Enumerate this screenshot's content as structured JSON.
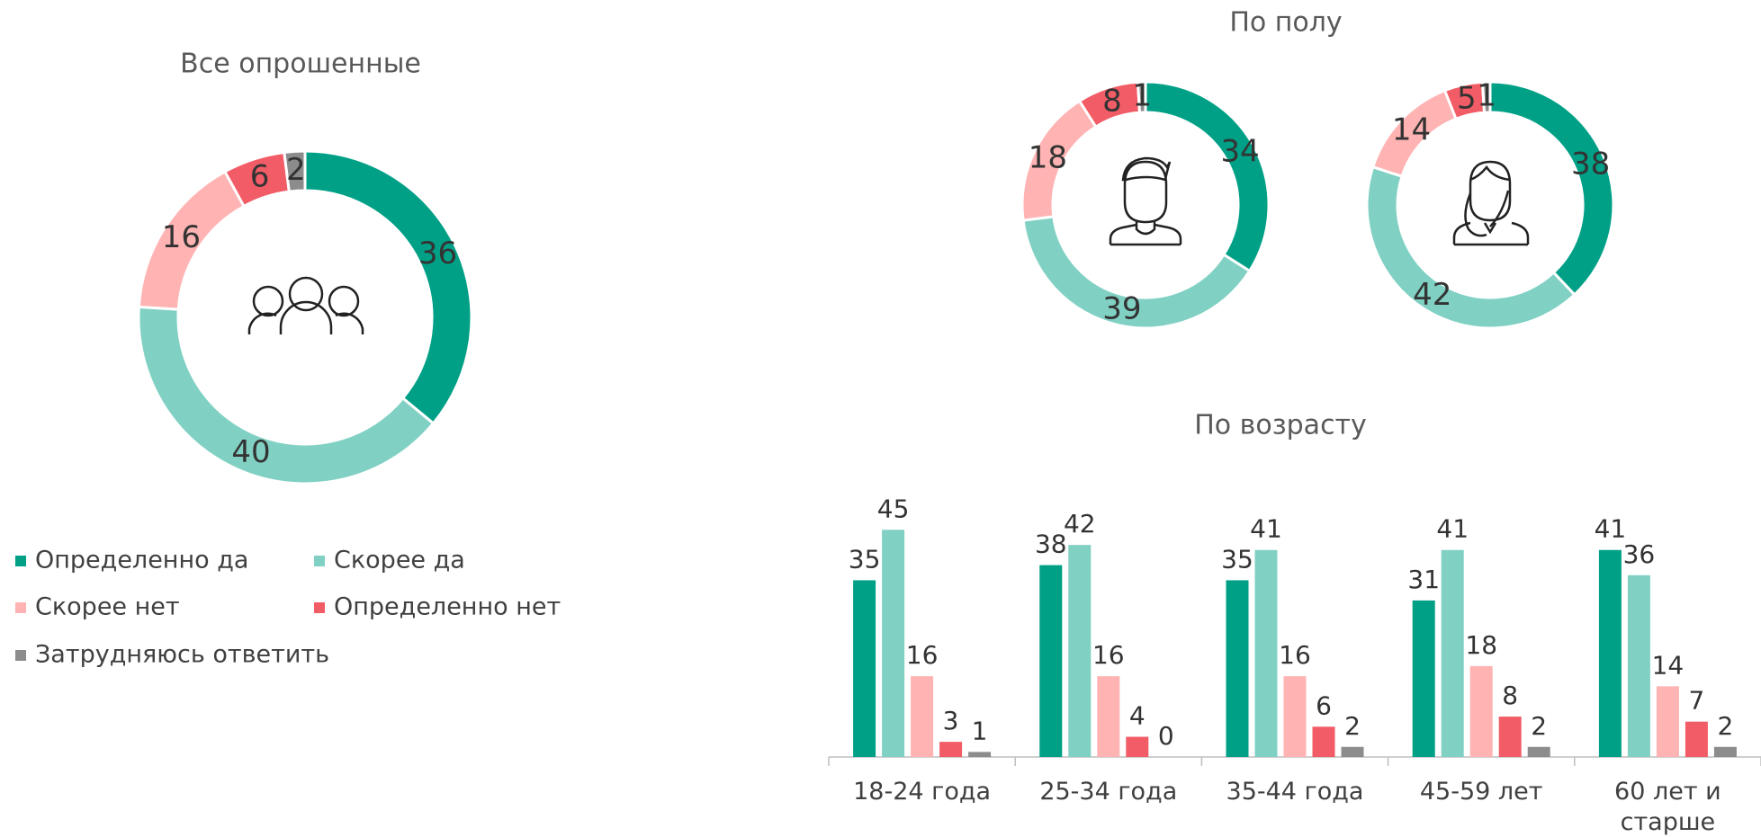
{
  "chart_data": [
    {
      "type": "donut",
      "title": "Все опрошенные",
      "colors": [
        "#00a086",
        "#80d1c3",
        "#ffb3b3",
        "#f25c66",
        "#8c8c8c"
      ],
      "values": [
        36,
        40,
        16,
        6,
        2
      ]
    },
    {
      "type": "donut-pair",
      "title": "По полу",
      "colors": [
        "#00a086",
        "#80d1c3",
        "#ffb3b3",
        "#f25c66",
        "#8c8c8c"
      ],
      "series": [
        {
          "values": [
            34,
            39,
            18,
            8,
            1
          ]
        },
        {
          "values": [
            38,
            42,
            14,
            5,
            1
          ]
        }
      ]
    },
    {
      "type": "bar",
      "title": "По возрасту",
      "categories": [
        "18-24 года",
        "25-34 года",
        "35-44 года",
        "45-59 лет",
        "60 лет и старше"
      ],
      "series": [
        {
          "name": "Определенно да",
          "color": "#00a086",
          "values": [
            35,
            38,
            35,
            31,
            41
          ]
        },
        {
          "name": "Скорее да",
          "color": "#80d1c3",
          "values": [
            45,
            42,
            41,
            41,
            36
          ]
        },
        {
          "name": "Скорее нет",
          "color": "#ffb3b3",
          "values": [
            16,
            16,
            16,
            18,
            14
          ]
        },
        {
          "name": "Определенно нет",
          "color": "#f25c66",
          "values": [
            3,
            4,
            6,
            8,
            7
          ]
        },
        {
          "name": "Затрудняюсь ответить",
          "color": "#8c8c8c",
          "values": [
            1,
            0,
            2,
            2,
            2
          ]
        }
      ]
    }
  ]
}
